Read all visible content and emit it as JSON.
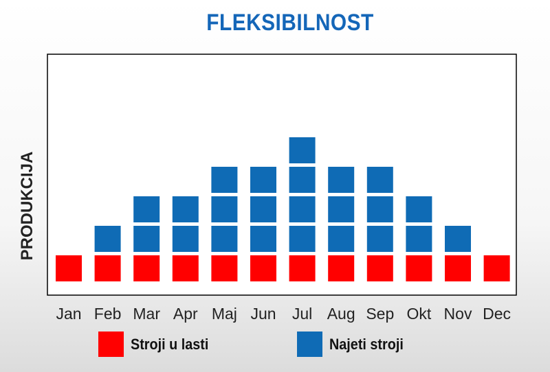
{
  "chart_data": {
    "type": "bar",
    "title": "FLEKSIBILNOST",
    "ylabel": "PRODUKCIJA",
    "xlabel": "",
    "categories": [
      "Jan",
      "Feb",
      "Mar",
      "Apr",
      "Maj",
      "Jun",
      "Jul",
      "Aug",
      "Sep",
      "Okt",
      "Nov",
      "Dec"
    ],
    "stacked": true,
    "series": [
      {
        "name": "Stroji u lasti",
        "color": "#ff0000",
        "values": [
          1,
          1,
          1,
          1,
          1,
          1,
          1,
          1,
          1,
          1,
          1,
          1
        ]
      },
      {
        "name": "Najeti stroji",
        "color": "#0f6bb5",
        "values": [
          0,
          1,
          2,
          2,
          3,
          3,
          4,
          3,
          3,
          2,
          1,
          0
        ]
      }
    ],
    "ylim": [
      0,
      7
    ],
    "grid": false,
    "legend_position": "bottom"
  }
}
